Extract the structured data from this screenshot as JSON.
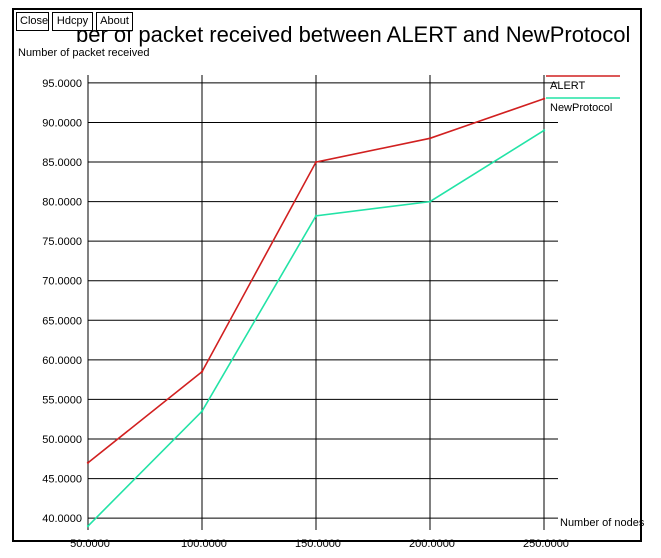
{
  "window": {
    "buttons": {
      "close": "Close",
      "hdcpy": "Hdcpy",
      "about": "About"
    }
  },
  "chart_data": {
    "type": "line",
    "title": "ber of packet received between ALERT and NewProtocol",
    "xlabel": "Number of nodes",
    "ylabel": "Number of packet received",
    "x": [
      50,
      100,
      150,
      200,
      250
    ],
    "x_tick_labels": [
      "50.0000",
      "100.0000",
      "150.0000",
      "200.0000",
      "250.0000"
    ],
    "y_ticks": [
      40,
      45,
      50,
      55,
      60,
      65,
      70,
      75,
      80,
      85,
      90,
      95
    ],
    "y_tick_labels": [
      "40.0000",
      "45.0000",
      "50.0000",
      "55.0000",
      "60.0000",
      "65.0000",
      "70.0000",
      "75.0000",
      "80.0000",
      "85.0000",
      "90.0000",
      "95.0000"
    ],
    "xlim": [
      50,
      250
    ],
    "ylim": [
      38.5,
      96
    ],
    "grid": true,
    "legend": "top-right",
    "series": [
      {
        "name": "ALERT",
        "color": "#d12020",
        "values": [
          47.0,
          58.5,
          85.0,
          88.0,
          93.0
        ]
      },
      {
        "name": "NewProtocol",
        "color": "#22e3a6",
        "values": [
          39.0,
          53.5,
          78.2,
          80.0,
          89.0
        ]
      }
    ]
  }
}
